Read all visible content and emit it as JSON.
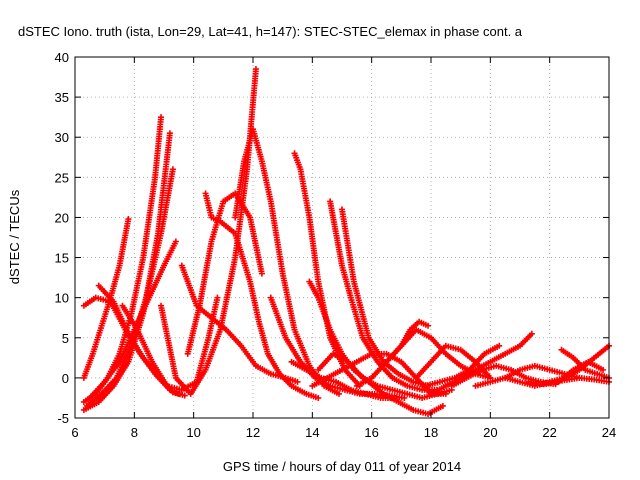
{
  "chart_data": {
    "type": "scatter",
    "title": "dSTEC Iono. truth (ista, Lon=29, Lat=41, h=147): STEC-STEC_elemax in phase cont. a",
    "xlabel": "GPS time / hours of day 011 of year 2014",
    "ylabel": "dSTEC  / TECUs",
    "xlim": [
      6,
      24
    ],
    "ylim": [
      -5,
      40
    ],
    "xticks": [
      "6",
      "8",
      "10",
      "12",
      "14",
      "16",
      "18",
      "20",
      "22",
      "24"
    ],
    "yticks": [
      "-5",
      "0",
      "5",
      "10",
      "15",
      "20",
      "25",
      "30",
      "35",
      "40"
    ],
    "grid": true,
    "marker": "+",
    "color": "#ff0000",
    "series": [
      {
        "x": [
          6.3,
          6.6,
          6.9,
          7.2,
          7.5,
          7.8
        ],
        "y": [
          0,
          3,
          6.5,
          10,
          14,
          19.8
        ]
      },
      {
        "x": [
          6.3,
          6.7,
          7.1,
          7.5,
          7.9,
          8.3,
          8.7,
          8.9
        ],
        "y": [
          -3,
          -2,
          0,
          3,
          8,
          15,
          25,
          32.5
        ]
      },
      {
        "x": [
          6.3,
          6.8,
          7.3,
          7.8,
          8.3,
          8.8,
          9.2
        ],
        "y": [
          -4,
          -3,
          -1,
          2,
          8,
          18,
          30.5
        ]
      },
      {
        "x": [
          6.4,
          6.9,
          7.4,
          7.9,
          8.4,
          8.9,
          9.3
        ],
        "y": [
          -3.5,
          -2,
          0,
          4,
          10,
          18,
          26
        ]
      },
      {
        "x": [
          6.5,
          7.0,
          7.5,
          8.0,
          8.5,
          9.0,
          9.4
        ],
        "y": [
          -2.5,
          -0.5,
          2,
          6,
          10,
          14,
          17
        ]
      },
      {
        "x": [
          6.3,
          6.7,
          7.2,
          7.7,
          8.2,
          8.7,
          9.2,
          9.5
        ],
        "y": [
          9,
          10,
          9.5,
          6,
          3,
          0.5,
          -1.5,
          -2
        ]
      },
      {
        "x": [
          6.8,
          7.3,
          7.8,
          8.3,
          8.8,
          9.3,
          9.7
        ],
        "y": [
          11.5,
          9.5,
          5.5,
          2.5,
          0.2,
          -1.8,
          -2.2
        ]
      },
      {
        "x": [
          7.6,
          8.1,
          8.6,
          9.1,
          9.6,
          10.1,
          10.5,
          10.8
        ],
        "y": [
          9,
          6,
          2,
          -1,
          -1.5,
          -0.5,
          5,
          10
        ]
      },
      {
        "x": [
          8.9,
          9.4,
          9.9,
          10.4,
          10.9,
          11.4,
          11.8,
          12.1
        ],
        "y": [
          9,
          0,
          -2,
          1,
          6,
          15,
          26,
          38.5
        ]
      },
      {
        "x": [
          9.6,
          10.1,
          10.6,
          11.1,
          11.6,
          12.1,
          12.6,
          13.1,
          13.5
        ],
        "y": [
          14,
          9,
          7.5,
          6,
          4,
          1.5,
          0.5,
          0,
          -0.5
        ]
      },
      {
        "x": [
          10.4,
          10.6,
          10.9,
          11.4,
          11.9,
          12.2,
          12.5,
          12.9,
          13.3,
          13.8,
          14.2
        ],
        "y": [
          23,
          20,
          19.5,
          18,
          12,
          7,
          3,
          0.5,
          -1,
          -2,
          -2.5
        ]
      },
      {
        "x": [
          9.8,
          10.2,
          10.6,
          11.0,
          11.4,
          11.9,
          12.3
        ],
        "y": [
          3,
          9,
          17,
          22,
          23,
          20,
          13
        ]
      },
      {
        "x": [
          11.4,
          11.7,
          12.0,
          12.3,
          12.6,
          13.0,
          13.4,
          13.9,
          14.4,
          14.9
        ],
        "y": [
          20,
          27,
          31,
          27,
          22,
          13,
          6,
          1.5,
          -1,
          -2
        ]
      },
      {
        "x": [
          13.4,
          13.6,
          13.9,
          14.2,
          14.6,
          15.1,
          15.6
        ],
        "y": [
          28,
          26,
          20,
          12,
          5,
          1,
          -1
        ]
      },
      {
        "x": [
          12.6,
          13.1,
          13.6,
          14.1,
          14.6,
          15.1,
          15.6,
          16.1,
          16.6,
          17.1
        ],
        "y": [
          10,
          5,
          2,
          0,
          -1,
          -1.5,
          -2,
          -2,
          -2.2,
          -2.5
        ]
      },
      {
        "x": [
          13.3,
          13.8,
          14.3,
          14.8,
          15.3,
          15.8,
          16.3,
          16.8
        ],
        "y": [
          2,
          1,
          0,
          -0.5,
          -1.5,
          -2,
          -2.5,
          -2.5
        ]
      },
      {
        "x": [
          13.9,
          14.2,
          14.6,
          15.0,
          15.4,
          15.9,
          16.4,
          16.9,
          17.4,
          17.9,
          18.4
        ],
        "y": [
          12,
          10,
          6,
          3,
          1,
          -0.5,
          -2,
          -3,
          -4,
          -4.5,
          -3.5
        ]
      },
      {
        "x": [
          14.2,
          14.7,
          15.2,
          15.7,
          16.2,
          16.7,
          17.2,
          17.7,
          18.2,
          18.7
        ],
        "y": [
          1,
          3,
          2,
          0,
          -1,
          -1.5,
          -2,
          -2.5,
          -2,
          -1.5
        ]
      },
      {
        "x": [
          14.6,
          14.8,
          15.0,
          15.3,
          15.7,
          16.2,
          16.7,
          17.2,
          17.7,
          18.2
        ],
        "y": [
          22,
          18,
          14,
          10,
          5,
          2,
          0,
          -1,
          -1.5,
          -1.5
        ]
      },
      {
        "x": [
          15.0,
          15.4,
          15.9,
          16.4,
          16.9,
          17.4,
          17.9
        ],
        "y": [
          21,
          12,
          5,
          2,
          0.5,
          -0.5,
          -1
        ]
      },
      {
        "x": [
          14.0,
          14.5,
          15.0,
          15.5,
          16.0,
          16.5,
          17.0,
          17.5,
          18.0,
          18.5
        ],
        "y": [
          -1,
          0,
          1,
          2,
          3,
          3,
          2,
          0,
          -2,
          -2
        ]
      },
      {
        "x": [
          15.5,
          16.0,
          16.5,
          17.0,
          17.3,
          17.6,
          17.9
        ],
        "y": [
          -1,
          0,
          2,
          4,
          6,
          7,
          6.5
        ]
      },
      {
        "x": [
          16.5,
          17.0,
          17.5,
          18.0,
          18.5,
          19.0,
          19.5,
          20.0
        ],
        "y": [
          2,
          4,
          6,
          5,
          3,
          1.5,
          0.5,
          0
        ]
      },
      {
        "x": [
          17.5,
          18.0,
          18.5,
          19.0,
          19.5,
          20.0
        ],
        "y": [
          0,
          2,
          4,
          3.5,
          2,
          0
        ]
      },
      {
        "x": [
          17.8,
          18.3,
          18.8,
          19.3,
          19.8,
          20.3
        ],
        "y": [
          -1,
          -0.5,
          0,
          1,
          3,
          4
        ]
      },
      {
        "x": [
          18.0,
          18.5,
          19.0,
          19.5,
          20.0,
          20.5,
          21.0,
          21.4
        ],
        "y": [
          -2,
          -1,
          0,
          1,
          2,
          3,
          4,
          5.5
        ]
      },
      {
        "x": [
          18.7,
          19.2,
          19.7,
          20.2,
          20.7,
          21.2,
          21.7,
          22.2
        ],
        "y": [
          -1,
          0,
          1,
          1.5,
          1,
          0,
          -0.5,
          -0.8
        ]
      },
      {
        "x": [
          19.5,
          20.0,
          20.5,
          21.0,
          21.5,
          22.0,
          22.5,
          23.0
        ],
        "y": [
          -1,
          -0.5,
          0,
          1,
          1.5,
          1,
          0.5,
          0
        ]
      },
      {
        "x": [
          20.5,
          21.0,
          21.5,
          22.0,
          22.5,
          23.0,
          23.5,
          24.0
        ],
        "y": [
          0,
          -0.5,
          -1,
          -0.5,
          0,
          1,
          2.5,
          4
        ]
      },
      {
        "x": [
          21.3,
          21.8,
          22.3,
          22.8,
          23.3,
          23.8
        ],
        "y": [
          -0.5,
          -0.8,
          -0.5,
          1,
          2,
          1
        ]
      },
      {
        "x": [
          22.4,
          22.8,
          23.2,
          23.6,
          24.0
        ],
        "y": [
          3.5,
          2.5,
          1,
          0.5,
          0
        ]
      },
      {
        "x": [
          22.0,
          22.5,
          23.0,
          23.5,
          24.0
        ],
        "y": [
          -0.5,
          -0.3,
          0,
          -0.2,
          -0.5
        ]
      }
    ]
  }
}
